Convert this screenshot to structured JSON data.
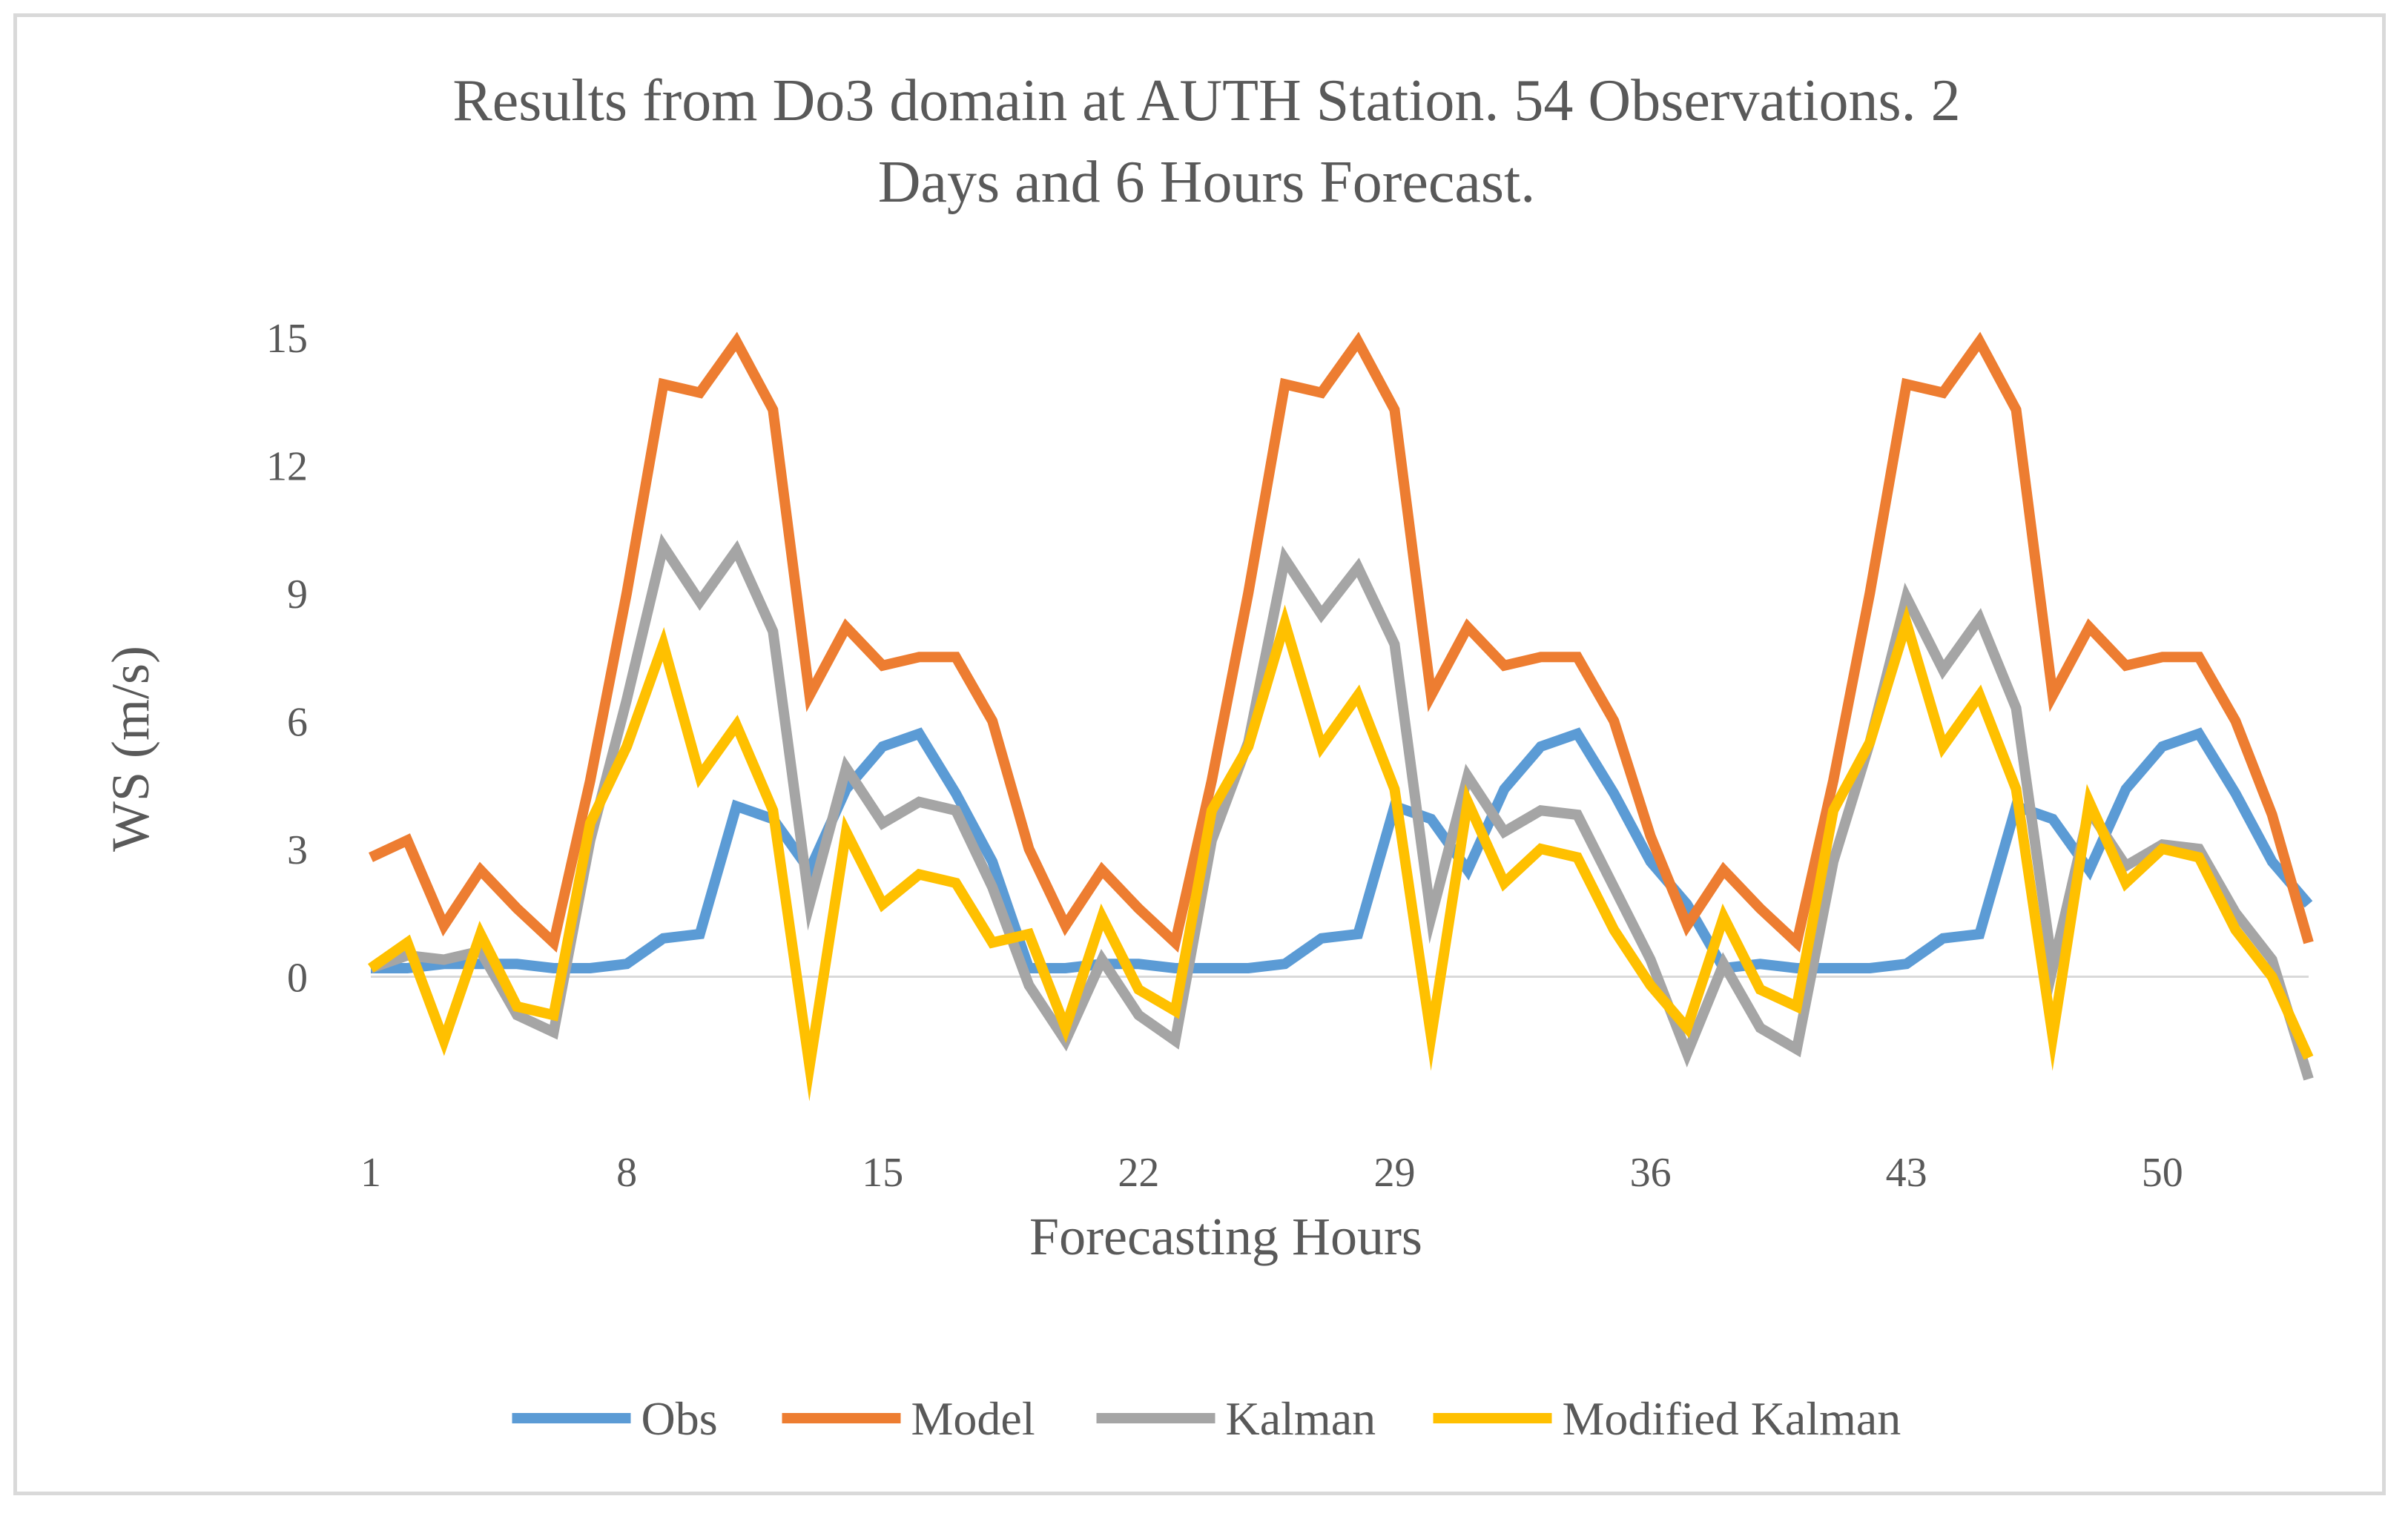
{
  "chart_data": {
    "type": "line",
    "title_lines": [
      "Results from Do3  domain at AUTH  Station. 54 Observations. 2",
      "Days and 6 Hours Forecast."
    ],
    "xlabel": "Forecasting Hours",
    "ylabel": "WS (m/s)",
    "ylim": [
      -3,
      15
    ],
    "yticks": [
      0,
      3,
      6,
      9,
      12,
      15
    ],
    "xlim": [
      1,
      54
    ],
    "xticks": [
      1,
      8,
      15,
      22,
      29,
      36,
      43,
      50
    ],
    "grid": false,
    "legend_position": "bottom",
    "x": [
      1,
      2,
      3,
      4,
      5,
      6,
      7,
      8,
      9,
      10,
      11,
      12,
      13,
      14,
      15,
      16,
      17,
      18,
      19,
      20,
      21,
      22,
      23,
      24,
      25,
      26,
      27,
      28,
      29,
      30,
      31,
      32,
      33,
      34,
      35,
      36,
      37,
      38,
      39,
      40,
      41,
      42,
      43,
      44,
      45,
      46,
      47,
      48,
      49,
      50,
      51,
      52,
      53,
      54
    ],
    "series": [
      {
        "name": "Obs",
        "color": "#5b9bd5",
        "values": [
          0.2,
          0.2,
          0.3,
          0.3,
          0.3,
          0.2,
          0.2,
          0.3,
          0.9,
          1.0,
          4.0,
          3.7,
          2.5,
          4.4,
          5.4,
          5.7,
          4.3,
          2.7,
          0.2,
          0.2,
          0.3,
          0.3,
          0.2,
          0.2,
          0.2,
          0.3,
          0.9,
          1.0,
          4.0,
          3.7,
          2.5,
          4.4,
          5.4,
          5.7,
          4.3,
          2.7,
          1.7,
          0.2,
          0.3,
          0.2,
          0.2,
          0.2,
          0.3,
          0.9,
          1.0,
          4.0,
          3.7,
          2.5,
          4.4,
          5.4,
          5.7,
          4.3,
          2.7,
          1.7
        ]
      },
      {
        "name": "Model",
        "color": "#ed7d31",
        "values": [
          2.8,
          3.2,
          1.2,
          2.5,
          1.6,
          0.8,
          4.6,
          9.0,
          13.9,
          13.7,
          14.9,
          13.3,
          6.6,
          8.2,
          7.3,
          7.5,
          7.5,
          6.0,
          3.0,
          1.2,
          2.5,
          1.6,
          0.8,
          4.6,
          9.0,
          13.9,
          13.7,
          14.9,
          13.3,
          6.6,
          8.2,
          7.3,
          7.5,
          7.5,
          6.0,
          3.3,
          1.2,
          2.5,
          1.6,
          0.8,
          4.6,
          9.0,
          13.9,
          13.7,
          14.9,
          13.3,
          6.6,
          8.2,
          7.3,
          7.5,
          7.5,
          6.0,
          3.8,
          0.8
        ]
      },
      {
        "name": "Kalman",
        "color": "#a5a5a5",
        "values": [
          0.2,
          0.5,
          0.4,
          0.6,
          -0.9,
          -1.3,
          3.2,
          6.5,
          10.1,
          8.8,
          10.0,
          8.1,
          1.7,
          4.9,
          3.6,
          4.1,
          3.9,
          2.1,
          -0.2,
          -1.5,
          0.4,
          -0.9,
          -1.5,
          3.2,
          5.5,
          9.8,
          8.5,
          9.6,
          7.8,
          1.4,
          4.7,
          3.4,
          3.9,
          3.8,
          2.1,
          0.4,
          -1.8,
          0.3,
          -1.2,
          -1.7,
          2.7,
          5.5,
          8.9,
          7.2,
          8.4,
          6.3,
          0.2,
          3.9,
          2.6,
          3.1,
          3.0,
          1.5,
          0.4,
          -2.4
        ]
      },
      {
        "name": "Modified Kalman",
        "color": "#ffc000",
        "values": [
          0.2,
          0.8,
          -1.5,
          1.0,
          -0.7,
          -0.9,
          3.6,
          5.4,
          7.8,
          4.7,
          5.9,
          3.9,
          -2.1,
          3.4,
          1.7,
          2.4,
          2.2,
          0.8,
          1.0,
          -1.2,
          1.4,
          -0.3,
          -0.8,
          3.9,
          5.4,
          8.3,
          5.4,
          6.6,
          4.4,
          -1.4,
          4.1,
          2.2,
          3.0,
          2.8,
          1.1,
          -0.2,
          -1.2,
          1.4,
          -0.3,
          -0.7,
          3.9,
          5.5,
          8.3,
          5.4,
          6.6,
          4.4,
          -1.4,
          4.1,
          2.2,
          3.0,
          2.8,
          1.1,
          0.0,
          -1.9
        ]
      }
    ]
  }
}
